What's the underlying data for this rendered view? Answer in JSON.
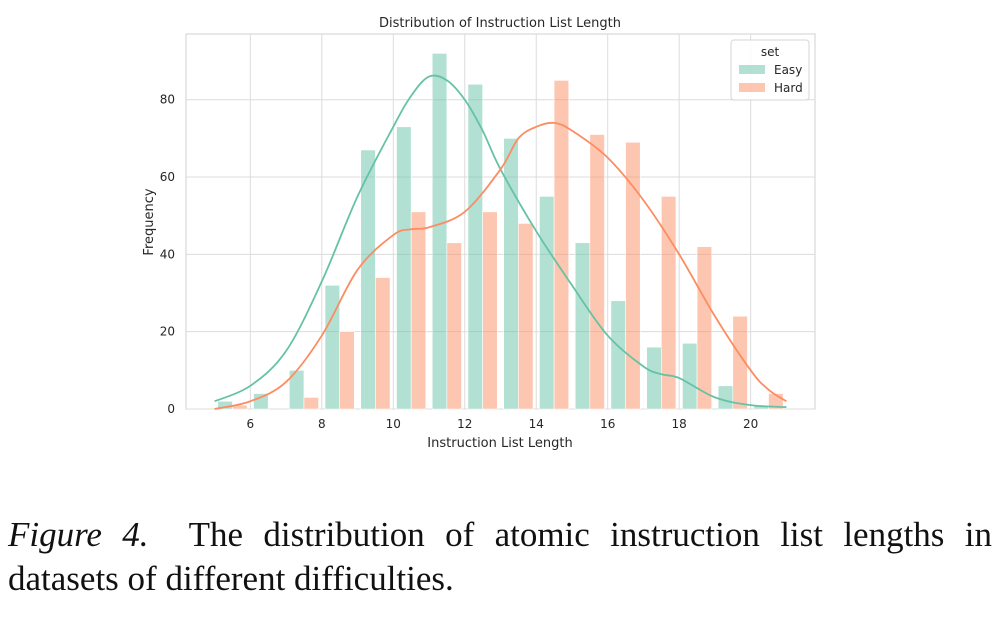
{
  "chart_data": {
    "type": "bar",
    "title": "Distribution of Instruction List Length",
    "xlabel": "Instruction List Length",
    "ylabel": "Frequency",
    "xlim": [
      4.2,
      21.8
    ],
    "ylim": [
      0,
      97
    ],
    "xticks": [
      6,
      8,
      10,
      12,
      14,
      16,
      18,
      20
    ],
    "yticks": [
      0,
      20,
      40,
      60,
      80
    ],
    "grid": true,
    "legend": {
      "title": "set",
      "placement": "top-right"
    },
    "bar_centers": [
      5.5,
      6.5,
      7.5,
      8.5,
      9.5,
      10.5,
      11.5,
      12.5,
      13.5,
      14.5,
      15.5,
      16.5,
      17.5,
      18.5,
      19.5,
      20.5
    ],
    "series": [
      {
        "name": "Easy",
        "color": "#66c2a5",
        "values": [
          2,
          4,
          10,
          32,
          67,
          73,
          92,
          84,
          70,
          55,
          43,
          28,
          16,
          17,
          6,
          1
        ],
        "kde": {
          "x": [
            5,
            6,
            7,
            8,
            9,
            10,
            10.5,
            11,
            11.5,
            12,
            12.5,
            13,
            14,
            15,
            16,
            17,
            17.5,
            18,
            19,
            20,
            21
          ],
          "y": [
            2,
            6,
            15,
            33,
            55,
            73,
            81,
            86,
            85,
            80,
            72,
            62,
            46,
            32,
            19,
            11,
            9,
            8,
            3,
            1,
            0.5
          ]
        }
      },
      {
        "name": "Hard",
        "color": "#fc8d62",
        "values": [
          1,
          0,
          3,
          20,
          34,
          51,
          43,
          51,
          48,
          85,
          71,
          69,
          55,
          42,
          24,
          4
        ],
        "kde": {
          "x": [
            5,
            6,
            7,
            8,
            9,
            10,
            10.5,
            11,
            12,
            13,
            13.5,
            14,
            14.5,
            15,
            16,
            17,
            18,
            19,
            20,
            20.5,
            21
          ],
          "y": [
            0,
            2,
            7,
            19,
            36,
            45,
            46.5,
            47,
            51,
            62,
            70,
            73,
            74,
            72,
            65,
            54,
            40,
            24,
            10,
            5,
            2
          ]
        }
      }
    ]
  },
  "caption": {
    "label": "Figure 4.",
    "text": "The distribution of atomic instruction list lengths in datasets of different difficulties."
  }
}
